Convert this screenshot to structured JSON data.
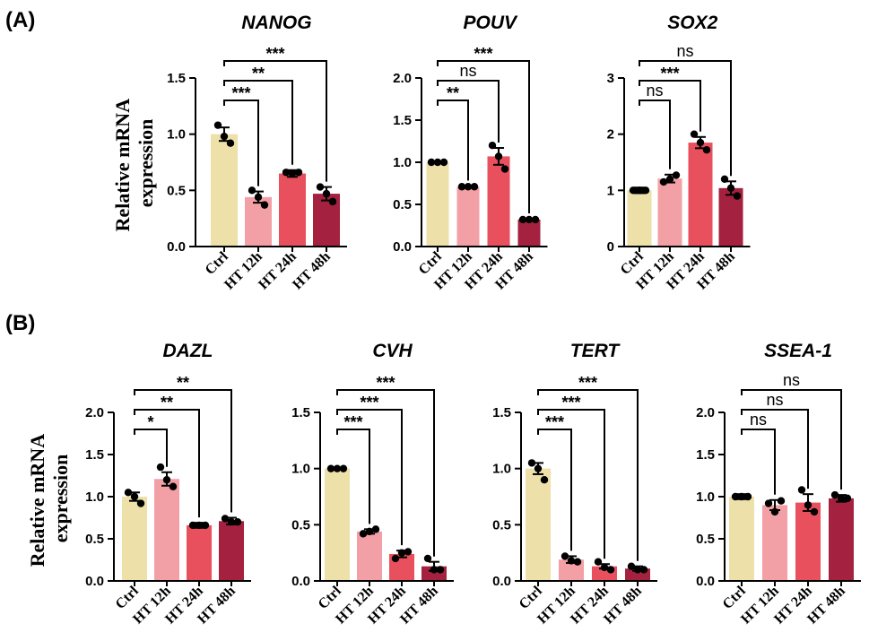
{
  "panel_labels": {
    "a": "(A)",
    "b": "(B)"
  },
  "ylabel_lines": [
    "Relative mRNA",
    "expression"
  ],
  "colors": [
    "#ede0a9",
    "#f2a0a6",
    "#e8505e",
    "#a4213f"
  ],
  "chart_data": [
    {
      "type": "bar",
      "panel": "A",
      "title": "NANOG",
      "categories": [
        "Ctrl",
        "HT 12h",
        "HT 24h",
        "HT 48h"
      ],
      "values": [
        1.0,
        0.44,
        0.65,
        0.47
      ],
      "errors": [
        0.06,
        0.05,
        0.03,
        0.06
      ],
      "points": [
        [
          1.08,
          0.98,
          0.92
        ],
        [
          0.5,
          0.44,
          0.37
        ],
        [
          0.66,
          0.65,
          0.66
        ],
        [
          0.53,
          0.47,
          0.4
        ]
      ],
      "ylim": [
        0,
        1.5
      ],
      "yticks": [
        "0.0",
        "0.5",
        "1.0",
        "1.5"
      ],
      "comparisons": [
        {
          "to": 1,
          "label": "***",
          "level": 0
        },
        {
          "to": 2,
          "label": "**",
          "level": 1
        },
        {
          "to": 3,
          "label": "***",
          "level": 2
        }
      ]
    },
    {
      "type": "bar",
      "panel": "A",
      "title": "POUV",
      "categories": [
        "Ctrl",
        "HT 12h",
        "HT 24h",
        "HT 48h"
      ],
      "values": [
        1.0,
        0.71,
        1.07,
        0.32
      ],
      "errors": [
        0.01,
        0.01,
        0.1,
        0.01
      ],
      "points": [
        [
          1.0,
          1.0,
          1.0
        ],
        [
          0.71,
          0.71,
          0.71
        ],
        [
          1.2,
          1.07,
          0.92
        ],
        [
          0.32,
          0.32,
          0.32
        ]
      ],
      "ylim": [
        0,
        2.0
      ],
      "yticks": [
        "0.0",
        "0.5",
        "1.0",
        "1.5",
        "2.0"
      ],
      "comparisons": [
        {
          "to": 1,
          "label": "**",
          "level": 0
        },
        {
          "to": 2,
          "label": "ns",
          "level": 1
        },
        {
          "to": 3,
          "label": "***",
          "level": 2
        }
      ]
    },
    {
      "type": "bar",
      "panel": "A",
      "title": "SOX2",
      "categories": [
        "Ctrl",
        "HT 12h",
        "HT 24h",
        "HT 48h"
      ],
      "values": [
        1.0,
        1.21,
        1.85,
        1.04
      ],
      "errors": [
        0.05,
        0.07,
        0.1,
        0.12
      ],
      "points": [
        [
          1.0,
          1.0,
          1.0
        ],
        [
          1.15,
          1.2,
          1.27
        ],
        [
          2.0,
          1.85,
          1.72
        ],
        [
          1.2,
          1.04,
          0.9
        ]
      ],
      "ylim": [
        0,
        3
      ],
      "yticks": [
        "0",
        "1",
        "2",
        "3"
      ],
      "comparisons": [
        {
          "to": 1,
          "label": "ns",
          "level": 0
        },
        {
          "to": 2,
          "label": "***",
          "level": 1
        },
        {
          "to": 3,
          "label": "ns",
          "level": 2
        }
      ]
    },
    {
      "type": "bar",
      "panel": "B",
      "title": "DAZL",
      "categories": [
        "Ctrl",
        "HT 12h",
        "HT 24h",
        "HT 48h"
      ],
      "values": [
        1.0,
        1.21,
        0.66,
        0.71
      ],
      "errors": [
        0.05,
        0.08,
        0.03,
        0.04
      ],
      "points": [
        [
          1.05,
          1.0,
          0.92
        ],
        [
          1.35,
          1.2,
          1.12
        ],
        [
          0.66,
          0.66,
          0.66
        ],
        [
          0.74,
          0.7,
          0.7
        ]
      ],
      "ylim": [
        0,
        2.0
      ],
      "yticks": [
        "0.0",
        "0.5",
        "1.0",
        "1.5",
        "2.0"
      ],
      "comparisons": [
        {
          "to": 1,
          "label": "*",
          "level": 0
        },
        {
          "to": 2,
          "label": "**",
          "level": 1
        },
        {
          "to": 3,
          "label": "**",
          "level": 2
        }
      ]
    },
    {
      "type": "bar",
      "panel": "B",
      "title": "CVH",
      "categories": [
        "Ctrl",
        "HT 12h",
        "HT 24h",
        "HT 48h"
      ],
      "values": [
        1.0,
        0.44,
        0.24,
        0.13
      ],
      "errors": [
        0.01,
        0.02,
        0.03,
        0.04
      ],
      "points": [
        [
          1.0,
          1.0,
          1.0
        ],
        [
          0.42,
          0.44,
          0.46
        ],
        [
          0.2,
          0.25,
          0.26
        ],
        [
          0.2,
          0.1,
          0.1
        ]
      ],
      "ylim": [
        0,
        1.5
      ],
      "yticks": [
        "0.0",
        "0.5",
        "1.0",
        "1.5"
      ],
      "comparisons": [
        {
          "to": 1,
          "label": "***",
          "level": 0
        },
        {
          "to": 2,
          "label": "***",
          "level": 1
        },
        {
          "to": 3,
          "label": "***",
          "level": 2
        }
      ]
    },
    {
      "type": "bar",
      "panel": "B",
      "title": "TERT",
      "categories": [
        "Ctrl",
        "HT 12h",
        "HT 24h",
        "HT 48h"
      ],
      "values": [
        1.0,
        0.19,
        0.13,
        0.11
      ],
      "errors": [
        0.05,
        0.03,
        0.02,
        0.02
      ],
      "points": [
        [
          1.05,
          1.0,
          0.9
        ],
        [
          0.22,
          0.18,
          0.17
        ],
        [
          0.17,
          0.12,
          0.1
        ],
        [
          0.13,
          0.1,
          0.1
        ]
      ],
      "ylim": [
        0,
        1.5
      ],
      "yticks": [
        "0.0",
        "0.5",
        "1.0",
        "1.5"
      ],
      "comparisons": [
        {
          "to": 1,
          "label": "***",
          "level": 0
        },
        {
          "to": 2,
          "label": "***",
          "level": 1
        },
        {
          "to": 3,
          "label": "***",
          "level": 2
        }
      ]
    },
    {
      "type": "bar",
      "panel": "B",
      "title": "SSEA-1",
      "categories": [
        "Ctrl",
        "HT 12h",
        "HT 24h",
        "HT 48h"
      ],
      "values": [
        1.0,
        0.9,
        0.93,
        0.98
      ],
      "errors": [
        0.03,
        0.06,
        0.1,
        0.04
      ],
      "points": [
        [
          1.0,
          1.0,
          1.0
        ],
        [
          0.92,
          0.82,
          0.95
        ],
        [
          1.08,
          0.9,
          0.82
        ],
        [
          1.02,
          0.98,
          0.98
        ]
      ],
      "ylim": [
        0,
        2.0
      ],
      "yticks": [
        "0.0",
        "0.5",
        "1.0",
        "1.5",
        "2.0"
      ],
      "comparisons": [
        {
          "to": 1,
          "label": "ns",
          "level": 0
        },
        {
          "to": 2,
          "label": "ns",
          "level": 1
        },
        {
          "to": 3,
          "label": "ns",
          "level": 2
        }
      ]
    }
  ]
}
